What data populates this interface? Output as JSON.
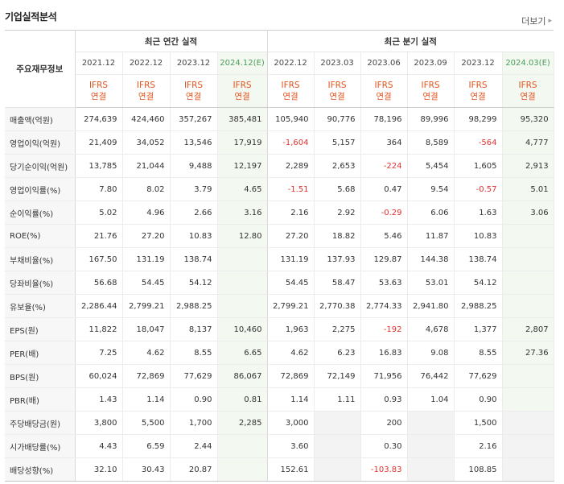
{
  "header": {
    "title": "기업실적분석",
    "more_label": "더보기"
  },
  "table": {
    "row_header": "주요재무정보",
    "groups": [
      {
        "label": "최근 연간 실적"
      },
      {
        "label": "최근 분기 실적"
      }
    ],
    "columns": [
      {
        "period": "2021.12",
        "basis1": "IFRS",
        "basis2": "연결",
        "estimate": false
      },
      {
        "period": "2022.12",
        "basis1": "IFRS",
        "basis2": "연결",
        "estimate": false
      },
      {
        "period": "2023.12",
        "basis1": "IFRS",
        "basis2": "연결",
        "estimate": false
      },
      {
        "period": "2024.12(E)",
        "basis1": "IFRS",
        "basis2": "연결",
        "estimate": true
      },
      {
        "period": "2022.12",
        "basis1": "IFRS",
        "basis2": "연결",
        "estimate": false
      },
      {
        "period": "2023.03",
        "basis1": "IFRS",
        "basis2": "연결",
        "estimate": false
      },
      {
        "period": "2023.06",
        "basis1": "IFRS",
        "basis2": "연결",
        "estimate": false
      },
      {
        "period": "2023.09",
        "basis1": "IFRS",
        "basis2": "연결",
        "estimate": false
      },
      {
        "period": "2023.12",
        "basis1": "IFRS",
        "basis2": "연결",
        "estimate": false
      },
      {
        "period": "2024.03(E)",
        "basis1": "IFRS",
        "basis2": "연결",
        "estimate": true
      }
    ],
    "rows": [
      {
        "label": "매출액(억원)",
        "group_start": false,
        "values": [
          "274,639",
          "424,460",
          "357,267",
          "385,481",
          "105,940",
          "90,776",
          "78,196",
          "89,996",
          "98,299",
          "95,320"
        ]
      },
      {
        "label": "영업이익(억원)",
        "group_start": false,
        "values": [
          "21,409",
          "34,052",
          "13,546",
          "17,919",
          "-1,604",
          "5,157",
          "364",
          "8,589",
          "-564",
          "4,777"
        ]
      },
      {
        "label": "당기순이익(억원)",
        "group_start": false,
        "values": [
          "13,785",
          "21,044",
          "9,488",
          "12,197",
          "2,289",
          "2,653",
          "-224",
          "5,454",
          "1,605",
          "2,913"
        ]
      },
      {
        "label": "영업이익률(%)",
        "group_start": true,
        "values": [
          "7.80",
          "8.02",
          "3.79",
          "4.65",
          "-1.51",
          "5.68",
          "0.47",
          "9.54",
          "-0.57",
          "5.01"
        ]
      },
      {
        "label": "순이익률(%)",
        "group_start": false,
        "values": [
          "5.02",
          "4.96",
          "2.66",
          "3.16",
          "2.16",
          "2.92",
          "-0.29",
          "6.06",
          "1.63",
          "3.06"
        ]
      },
      {
        "label": "ROE(%)",
        "group_start": false,
        "values": [
          "21.76",
          "27.20",
          "10.83",
          "12.80",
          "27.20",
          "18.82",
          "5.46",
          "11.87",
          "10.83",
          ""
        ]
      },
      {
        "label": "부채비율(%)",
        "group_start": true,
        "values": [
          "167.50",
          "131.19",
          "138.74",
          "",
          "131.19",
          "137.93",
          "129.87",
          "144.38",
          "138.74",
          ""
        ]
      },
      {
        "label": "당좌비율(%)",
        "group_start": false,
        "values": [
          "56.68",
          "54.45",
          "54.12",
          "",
          "54.45",
          "58.47",
          "53.63",
          "53.01",
          "54.12",
          ""
        ]
      },
      {
        "label": "유보율(%)",
        "group_start": false,
        "values": [
          "2,286.44",
          "2,799.21",
          "2,988.25",
          "",
          "2,799.21",
          "2,770.38",
          "2,774.33",
          "2,941.80",
          "2,988.25",
          ""
        ]
      },
      {
        "label": "EPS(원)",
        "group_start": true,
        "values": [
          "11,822",
          "18,047",
          "8,137",
          "10,460",
          "1,963",
          "2,275",
          "-192",
          "4,678",
          "1,377",
          "2,807"
        ]
      },
      {
        "label": "PER(배)",
        "group_start": false,
        "values": [
          "7.25",
          "4.62",
          "8.55",
          "6.65",
          "4.62",
          "6.23",
          "16.83",
          "9.08",
          "8.55",
          "27.36"
        ]
      },
      {
        "label": "BPS(원)",
        "group_start": false,
        "values": [
          "60,024",
          "72,869",
          "77,629",
          "86,067",
          "72,869",
          "72,149",
          "71,956",
          "76,442",
          "77,629",
          ""
        ]
      },
      {
        "label": "PBR(배)",
        "group_start": false,
        "values": [
          "1.43",
          "1.14",
          "0.90",
          "0.81",
          "1.14",
          "1.11",
          "0.93",
          "1.04",
          "0.90",
          ""
        ]
      },
      {
        "label": "주당배당금(원)",
        "group_start": true,
        "values": [
          "3,800",
          "5,500",
          "1,700",
          "2,285",
          "3,000",
          "",
          "200",
          "",
          "1,500",
          ""
        ]
      },
      {
        "label": "시가배당률(%)",
        "group_start": false,
        "values": [
          "4.43",
          "6.59",
          "2.44",
          "",
          "3.60",
          "",
          "0.30",
          "",
          "2.16",
          ""
        ]
      },
      {
        "label": "배당성향(%)",
        "group_start": false,
        "values": [
          "32.10",
          "30.43",
          "20.87",
          "",
          "152.61",
          "",
          "-103.83",
          "",
          "108.85",
          ""
        ]
      }
    ],
    "na_cells": [
      [
        13,
        5
      ],
      [
        13,
        7
      ],
      [
        13,
        9
      ],
      [
        14,
        5
      ],
      [
        14,
        7
      ],
      [
        14,
        9
      ],
      [
        15,
        5
      ],
      [
        15,
        7
      ],
      [
        15,
        9
      ]
    ]
  },
  "colors": {
    "negative": "#e0322f",
    "ifrs_basis": "#e4541e",
    "estimate_header": "#4a9e5a",
    "estimate_bg": "#f3f8f1"
  }
}
